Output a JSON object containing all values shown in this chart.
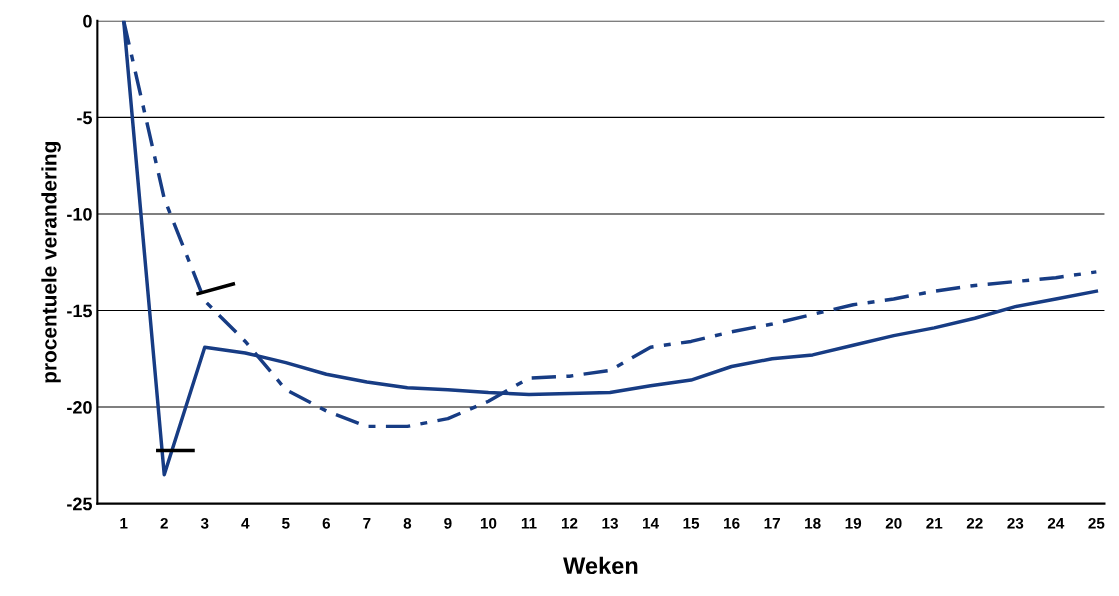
{
  "chart_data": {
    "type": "line",
    "xlabel": "Weken",
    "ylabel": "procentuele verandering",
    "categories": [
      "1",
      "2",
      "3",
      "4",
      "5",
      "6",
      "7",
      "8",
      "9",
      "10",
      "11",
      "12",
      "13",
      "14",
      "15",
      "16",
      "17",
      "18",
      "19",
      "20",
      "21",
      "22",
      "23",
      "24",
      "25"
    ],
    "series": [
      {
        "color": "#173c84",
        "line_style": "solid",
        "values": [
          0,
          -23.5,
          -16.9,
          -17.2,
          -17.7,
          -18.3,
          -18.7,
          -19.0,
          -19.1,
          -19.25,
          -19.35,
          -19.3,
          -19.25,
          -18.9,
          -18.6,
          -17.9,
          -17.5,
          -17.3,
          -16.8,
          -16.3,
          -15.9,
          -15.4,
          -14.8,
          -14.4,
          -14.0
        ]
      },
      {
        "color": "#173c84",
        "line_style": "dashed",
        "values": [
          0,
          -9.2,
          -14.5,
          -16.6,
          -19.1,
          -20.2,
          -21.0,
          -21.0,
          -20.6,
          -19.7,
          -18.5,
          -18.4,
          -18.1,
          -16.9,
          -16.6,
          -16.1,
          -15.7,
          -15.2,
          -14.7,
          -14.4,
          -14.0,
          -13.7,
          -13.5,
          -13.3,
          -13.0
        ]
      }
    ],
    "ylim": [
      -25,
      0
    ],
    "yticks": [
      -25,
      -20,
      -15,
      -10,
      -5,
      0
    ],
    "grid": "y",
    "marker": "none"
  }
}
